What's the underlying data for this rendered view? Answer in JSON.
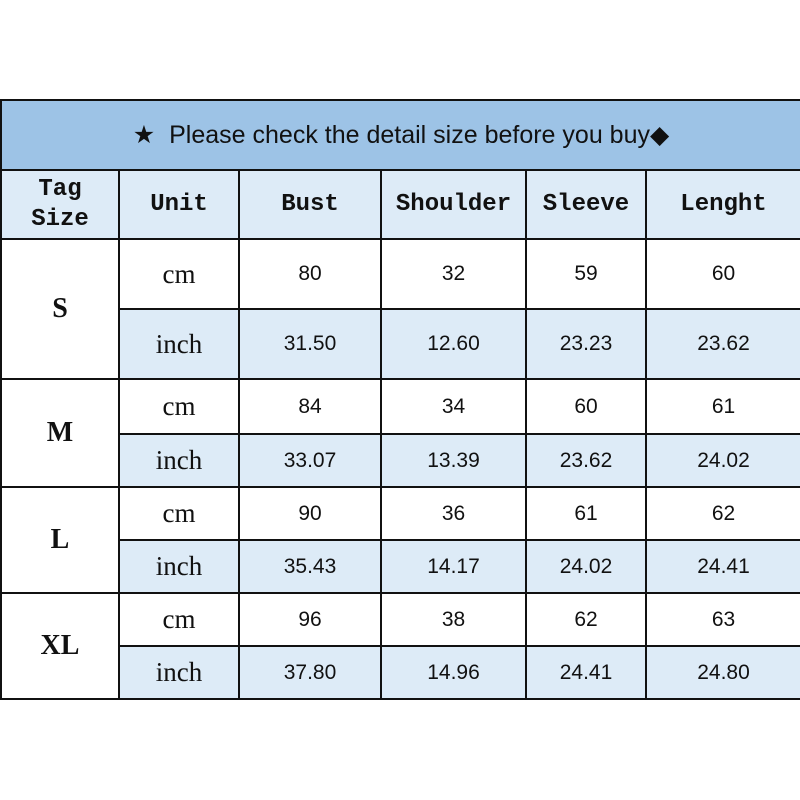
{
  "title": {
    "star": "★",
    "text": "Please check the detail size before you buy",
    "diamond": "◆"
  },
  "colors": {
    "title_bg": "#9dc3e6",
    "light_bg": "#ddebf7"
  },
  "headers": [
    "Tag Size",
    "Unit",
    "Bust",
    "Shoulder",
    "Sleeve",
    "Lenght"
  ],
  "sizes": [
    {
      "tag": "S",
      "rows": [
        {
          "unit": "cm",
          "values": [
            "80",
            "32",
            "59",
            "60"
          ]
        },
        {
          "unit": "inch",
          "values": [
            "31.50",
            "12.60",
            "23.23",
            "23.62"
          ]
        }
      ]
    },
    {
      "tag": "M",
      "rows": [
        {
          "unit": "cm",
          "values": [
            "84",
            "34",
            "60",
            "61"
          ]
        },
        {
          "unit": "inch",
          "values": [
            "33.07",
            "13.39",
            "23.62",
            "24.02"
          ]
        }
      ]
    },
    {
      "tag": "L",
      "rows": [
        {
          "unit": "cm",
          "values": [
            "90",
            "36",
            "61",
            "62"
          ]
        },
        {
          "unit": "inch",
          "values": [
            "35.43",
            "14.17",
            "24.02",
            "24.41"
          ]
        }
      ]
    },
    {
      "tag": "XL",
      "rows": [
        {
          "unit": "cm",
          "values": [
            "96",
            "38",
            "62",
            "63"
          ]
        },
        {
          "unit": "inch",
          "values": [
            "37.80",
            "14.96",
            "24.41",
            "24.80"
          ]
        }
      ]
    }
  ]
}
